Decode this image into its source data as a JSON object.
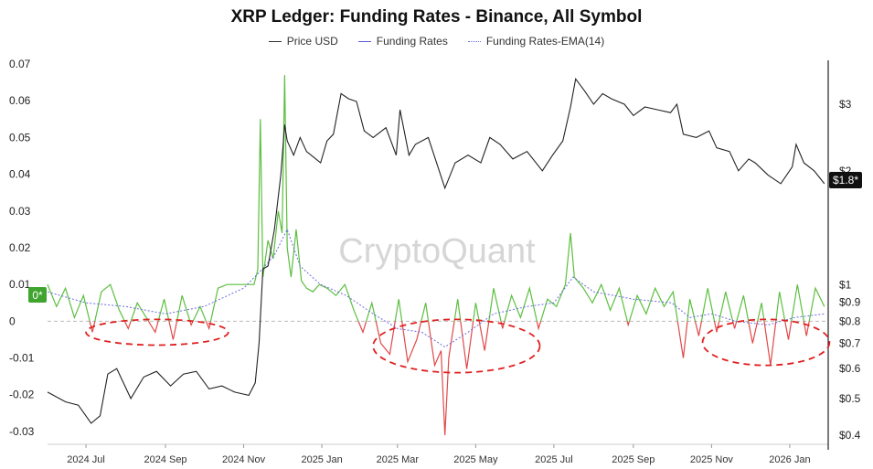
{
  "chart_data": {
    "type": "line",
    "title": "XRP Ledger: Funding Rates - Binance, All Symbol",
    "watermark": "CryptoQuant",
    "legend": {
      "placement": "top-center",
      "entries": [
        "Price USD",
        "Funding Rates",
        "Funding Rates-EMA(14)"
      ]
    },
    "series_colors": {
      "price": "#222222",
      "funding_positive": "#5bbf3f",
      "funding_negative": "#e04848",
      "ema": "#6a6ae0",
      "zero_line": "#bbbbbb",
      "annotation": "#e02020"
    },
    "left_axis": {
      "ticks": [
        "0.07",
        "0.06",
        "0.05",
        "0.04",
        "0.03",
        "0.02",
        "0.01",
        "0",
        "-0.01",
        "-0.02",
        "-0.03"
      ],
      "ylim": [
        -0.0335,
        0.071
      ]
    },
    "right_axis": {
      "scale": "log",
      "ticks": [
        "$3",
        "$2",
        "$1",
        "$0.9",
        "$0.8",
        "$0.7",
        "$0.6",
        "$0.5",
        "$0.4"
      ],
      "current_badge": "$1.8*"
    },
    "funding_badge": "0*",
    "x_ticks": [
      "2024 Jul",
      "2024 Sep",
      "2024 Nov",
      "2025 Jan",
      "2025 Mar",
      "2025 May",
      "2025 Jul",
      "2025 Sep",
      "2025 Nov",
      "2026 Jan"
    ],
    "x_range": [
      "2024-06-01",
      "2026-01-31"
    ],
    "price_usd": [
      [
        "2024-06-01",
        0.52
      ],
      [
        "2024-06-15",
        0.49
      ],
      [
        "2024-06-25",
        0.48
      ],
      [
        "2024-07-05",
        0.43
      ],
      [
        "2024-07-12",
        0.45
      ],
      [
        "2024-07-18",
        0.58
      ],
      [
        "2024-07-25",
        0.6
      ],
      [
        "2024-08-05",
        0.5
      ],
      [
        "2024-08-15",
        0.57
      ],
      [
        "2024-08-25",
        0.59
      ],
      [
        "2024-09-05",
        0.54
      ],
      [
        "2024-09-15",
        0.58
      ],
      [
        "2024-09-25",
        0.59
      ],
      [
        "2024-10-05",
        0.53
      ],
      [
        "2024-10-15",
        0.54
      ],
      [
        "2024-10-25",
        0.52
      ],
      [
        "2024-11-05",
        0.51
      ],
      [
        "2024-11-10",
        0.55
      ],
      [
        "2024-11-13",
        0.7
      ],
      [
        "2024-11-16",
        1.1
      ],
      [
        "2024-11-20",
        1.12
      ],
      [
        "2024-11-25",
        1.4
      ],
      [
        "2024-11-30",
        1.95
      ],
      [
        "2024-12-03",
        2.65
      ],
      [
        "2024-12-05",
        2.4
      ],
      [
        "2024-12-10",
        2.2
      ],
      [
        "2024-12-15",
        2.45
      ],
      [
        "2024-12-20",
        2.25
      ],
      [
        "2024-12-31",
        2.1
      ],
      [
        "2025-01-05",
        2.4
      ],
      [
        "2025-01-10",
        2.5
      ],
      [
        "2025-01-16",
        3.2
      ],
      [
        "2025-01-22",
        3.1
      ],
      [
        "2025-01-28",
        3.05
      ],
      [
        "2025-02-03",
        2.55
      ],
      [
        "2025-02-10",
        2.45
      ],
      [
        "2025-02-20",
        2.6
      ],
      [
        "2025-02-28",
        2.2
      ],
      [
        "2025-03-03",
        2.9
      ],
      [
        "2025-03-10",
        2.2
      ],
      [
        "2025-03-15",
        2.35
      ],
      [
        "2025-03-25",
        2.45
      ],
      [
        "2025-04-07",
        1.8
      ],
      [
        "2025-04-15",
        2.1
      ],
      [
        "2025-04-25",
        2.2
      ],
      [
        "2025-05-05",
        2.1
      ],
      [
        "2025-05-12",
        2.45
      ],
      [
        "2025-05-20",
        2.35
      ],
      [
        "2025-05-30",
        2.15
      ],
      [
        "2025-06-10",
        2.25
      ],
      [
        "2025-06-22",
        2.0
      ],
      [
        "2025-06-30",
        2.2
      ],
      [
        "2025-07-08",
        2.4
      ],
      [
        "2025-07-14",
        2.95
      ],
      [
        "2025-07-18",
        3.5
      ],
      [
        "2025-07-25",
        3.25
      ],
      [
        "2025-08-01",
        3.0
      ],
      [
        "2025-08-08",
        3.2
      ],
      [
        "2025-08-15",
        3.1
      ],
      [
        "2025-08-25",
        3.0
      ],
      [
        "2025-09-01",
        2.8
      ],
      [
        "2025-09-10",
        2.95
      ],
      [
        "2025-09-20",
        2.9
      ],
      [
        "2025-09-30",
        2.85
      ],
      [
        "2025-10-05",
        3.0
      ],
      [
        "2025-10-10",
        2.5
      ],
      [
        "2025-10-20",
        2.45
      ],
      [
        "2025-10-30",
        2.55
      ],
      [
        "2025-11-05",
        2.3
      ],
      [
        "2025-11-15",
        2.25
      ],
      [
        "2025-11-22",
        2.0
      ],
      [
        "2025-11-30",
        2.15
      ],
      [
        "2025-12-05",
        2.1
      ],
      [
        "2025-12-15",
        1.95
      ],
      [
        "2025-12-25",
        1.85
      ],
      [
        "2026-01-03",
        2.05
      ],
      [
        "2026-01-06",
        2.35
      ],
      [
        "2026-01-12",
        2.1
      ],
      [
        "2026-01-20",
        2.0
      ],
      [
        "2026-01-28",
        1.85
      ]
    ],
    "funding_rates": [
      [
        "2024-06-01",
        0.01
      ],
      [
        "2024-06-08",
        0.004
      ],
      [
        "2024-06-15",
        0.009
      ],
      [
        "2024-06-22",
        0.001
      ],
      [
        "2024-06-29",
        0.007
      ],
      [
        "2024-07-06",
        -0.003
      ],
      [
        "2024-07-13",
        0.008
      ],
      [
        "2024-07-20",
        0.01
      ],
      [
        "2024-07-27",
        0.003
      ],
      [
        "2024-08-03",
        -0.002
      ],
      [
        "2024-08-10",
        0.005
      ],
      [
        "2024-08-17",
        0.001
      ],
      [
        "2024-08-24",
        -0.003
      ],
      [
        "2024-08-31",
        0.006
      ],
      [
        "2024-09-07",
        -0.005
      ],
      [
        "2024-09-14",
        0.007
      ],
      [
        "2024-09-21",
        -0.001
      ],
      [
        "2024-09-28",
        0.004
      ],
      [
        "2024-10-05",
        -0.002
      ],
      [
        "2024-10-12",
        0.009
      ],
      [
        "2024-10-19",
        0.01
      ],
      [
        "2024-10-26",
        0.01
      ],
      [
        "2024-11-02",
        0.01
      ],
      [
        "2024-11-09",
        0.01
      ],
      [
        "2024-11-12",
        0.014
      ],
      [
        "2024-11-14",
        0.055
      ],
      [
        "2024-11-16",
        0.012
      ],
      [
        "2024-11-20",
        0.022
      ],
      [
        "2024-11-24",
        0.017
      ],
      [
        "2024-11-28",
        0.03
      ],
      [
        "2024-12-01",
        0.024
      ],
      [
        "2024-12-03",
        0.067
      ],
      [
        "2024-12-05",
        0.02
      ],
      [
        "2024-12-08",
        0.012
      ],
      [
        "2024-12-12",
        0.025
      ],
      [
        "2024-12-16",
        0.011
      ],
      [
        "2024-12-20",
        0.009
      ],
      [
        "2024-12-25",
        0.008
      ],
      [
        "2024-12-30",
        0.01
      ],
      [
        "2025-01-05",
        0.009
      ],
      [
        "2025-01-12",
        0.007
      ],
      [
        "2025-01-19",
        0.01
      ],
      [
        "2025-01-26",
        0.003
      ],
      [
        "2025-02-02",
        -0.003
      ],
      [
        "2025-02-09",
        0.005
      ],
      [
        "2025-02-16",
        -0.006
      ],
      [
        "2025-02-23",
        -0.009
      ],
      [
        "2025-03-02",
        0.006
      ],
      [
        "2025-03-09",
        -0.011
      ],
      [
        "2025-03-16",
        -0.005
      ],
      [
        "2025-03-23",
        0.005
      ],
      [
        "2025-03-30",
        -0.012
      ],
      [
        "2025-04-04",
        -0.008
      ],
      [
        "2025-04-07",
        -0.031
      ],
      [
        "2025-04-10",
        -0.01
      ],
      [
        "2025-04-17",
        0.006
      ],
      [
        "2025-04-24",
        -0.013
      ],
      [
        "2025-05-01",
        0.005
      ],
      [
        "2025-05-08",
        -0.008
      ],
      [
        "2025-05-15",
        0.009
      ],
      [
        "2025-05-22",
        -0.002
      ],
      [
        "2025-05-29",
        0.007
      ],
      [
        "2025-06-05",
        0.001
      ],
      [
        "2025-06-12",
        0.009
      ],
      [
        "2025-06-19",
        -0.002
      ],
      [
        "2025-06-26",
        0.006
      ],
      [
        "2025-07-03",
        0.004
      ],
      [
        "2025-07-10",
        0.01
      ],
      [
        "2025-07-14",
        0.024
      ],
      [
        "2025-07-17",
        0.012
      ],
      [
        "2025-07-24",
        0.009
      ],
      [
        "2025-07-31",
        0.005
      ],
      [
        "2025-08-07",
        0.01
      ],
      [
        "2025-08-14",
        0.003
      ],
      [
        "2025-08-21",
        0.009
      ],
      [
        "2025-08-28",
        -0.001
      ],
      [
        "2025-09-04",
        0.007
      ],
      [
        "2025-09-11",
        0.002
      ],
      [
        "2025-09-18",
        0.009
      ],
      [
        "2025-09-25",
        0.004
      ],
      [
        "2025-10-02",
        0.008
      ],
      [
        "2025-10-10",
        -0.01
      ],
      [
        "2025-10-15",
        0.006
      ],
      [
        "2025-10-22",
        -0.004
      ],
      [
        "2025-10-29",
        0.009
      ],
      [
        "2025-11-05",
        -0.003
      ],
      [
        "2025-11-12",
        0.008
      ],
      [
        "2025-11-19",
        -0.002
      ],
      [
        "2025-11-26",
        0.007
      ],
      [
        "2025-12-03",
        -0.006
      ],
      [
        "2025-12-10",
        0.005
      ],
      [
        "2025-12-17",
        -0.012
      ],
      [
        "2025-12-24",
        0.008
      ],
      [
        "2025-12-31",
        -0.005
      ],
      [
        "2026-01-07",
        0.01
      ],
      [
        "2026-01-14",
        -0.004
      ],
      [
        "2026-01-21",
        0.009
      ],
      [
        "2026-01-28",
        0.004
      ]
    ],
    "funding_ema14": [
      [
        "2024-06-01",
        0.008
      ],
      [
        "2024-07-01",
        0.005
      ],
      [
        "2024-08-01",
        0.004
      ],
      [
        "2024-09-01",
        0.002
      ],
      [
        "2024-10-01",
        0.004
      ],
      [
        "2024-11-01",
        0.009
      ],
      [
        "2024-11-15",
        0.014
      ],
      [
        "2024-11-25",
        0.018
      ],
      [
        "2024-12-05",
        0.025
      ],
      [
        "2024-12-15",
        0.015
      ],
      [
        "2024-12-31",
        0.01
      ],
      [
        "2025-01-20",
        0.007
      ],
      [
        "2025-02-10",
        0.002
      ],
      [
        "2025-03-01",
        -0.002
      ],
      [
        "2025-03-20",
        -0.003
      ],
      [
        "2025-04-07",
        -0.007
      ],
      [
        "2025-04-25",
        -0.003
      ],
      [
        "2025-05-15",
        0.002
      ],
      [
        "2025-06-10",
        0.004
      ],
      [
        "2025-07-01",
        0.005
      ],
      [
        "2025-07-16",
        0.012
      ],
      [
        "2025-08-01",
        0.008
      ],
      [
        "2025-09-01",
        0.006
      ],
      [
        "2025-10-01",
        0.005
      ],
      [
        "2025-10-15",
        0.001
      ],
      [
        "2025-11-01",
        0.002
      ],
      [
        "2025-11-20",
        0.0
      ],
      [
        "2025-12-15",
        -0.001
      ],
      [
        "2026-01-05",
        0.001
      ],
      [
        "2026-01-28",
        0.002
      ]
    ],
    "annotations": [
      {
        "shape": "dashed-ellipse",
        "x_from": "2024-07-01",
        "x_to": "2024-10-20",
        "y_from": -0.0065,
        "y_to": 0.0005
      },
      {
        "shape": "dashed-ellipse",
        "x_from": "2025-02-10",
        "x_to": "2025-06-20",
        "y_from": -0.014,
        "y_to": 0.0005
      },
      {
        "shape": "dashed-ellipse",
        "x_from": "2025-10-25",
        "x_to": "2026-02-01",
        "y_from": -0.012,
        "y_to": 0.0005
      }
    ]
  }
}
